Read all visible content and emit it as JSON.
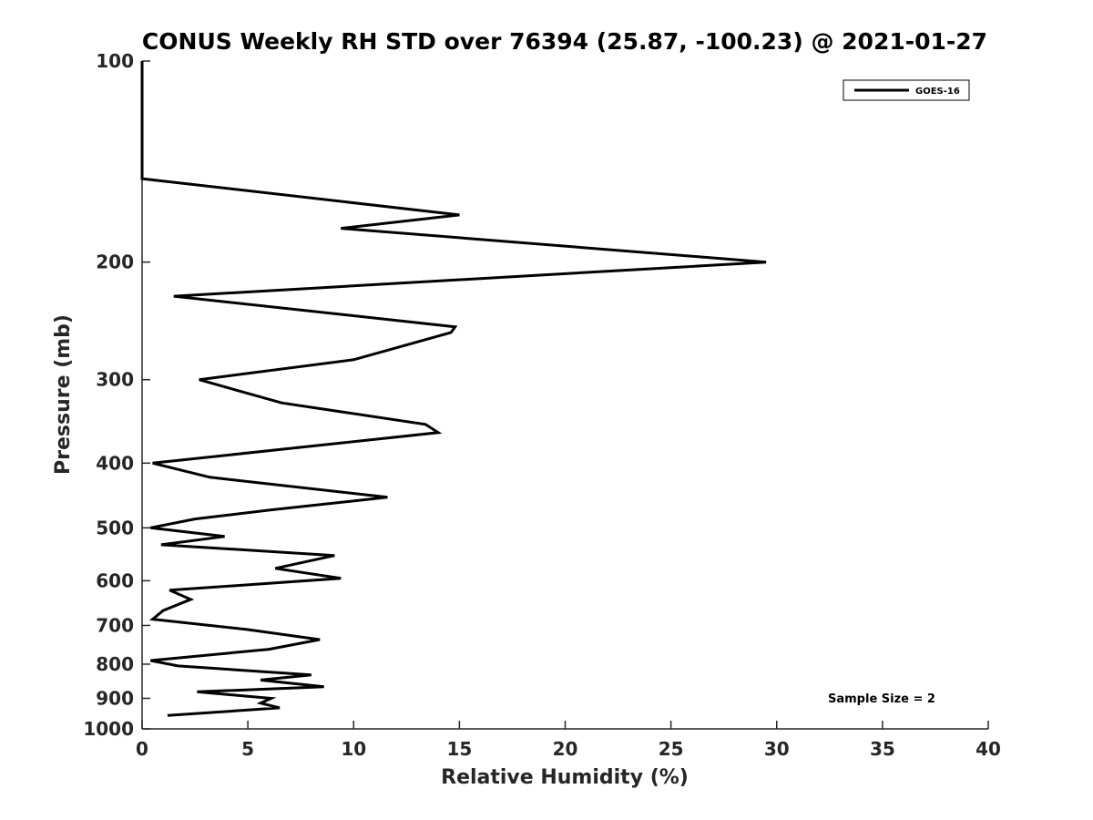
{
  "chart_data": {
    "type": "line",
    "title": "CONUS Weekly RH STD over 76394 (25.87, -100.23) @ 2021-01-27",
    "xlabel": "Relative Humidity (%)",
    "ylabel": "Pressure (mb)",
    "xlim": [
      0,
      40
    ],
    "ylim": [
      100,
      1000
    ],
    "yscale": "log",
    "yreversed": true,
    "grid": false,
    "legend_position": "top-right",
    "xticks": [
      "0",
      "5",
      "10",
      "15",
      "20",
      "25",
      "30",
      "35",
      "40"
    ],
    "yticks": [
      "100",
      "200",
      "300",
      "400",
      "500",
      "600",
      "700",
      "800",
      "900",
      "1000"
    ],
    "series": [
      {
        "name": "GOES-16",
        "color": "#000000",
        "x": [
          0.0,
          0.0,
          15.0,
          9.4,
          29.5,
          1.5,
          14.8,
          14.6,
          10.0,
          2.7,
          6.6,
          13.4,
          14.0,
          0.5,
          3.2,
          11.6,
          6.1,
          2.5,
          0.4,
          3.9,
          0.9,
          9.1,
          6.3,
          9.4,
          1.3,
          2.3,
          1.0,
          0.5,
          5.0,
          8.4,
          6.0,
          0.4,
          1.7,
          8.0,
          5.6,
          8.6,
          2.6,
          6.1,
          5.6,
          6.5,
          1.2
        ],
        "y": [
          100,
          150,
          170,
          178,
          200,
          225,
          250,
          255,
          280,
          300,
          325,
          350,
          360,
          400,
          420,
          450,
          470,
          485,
          500,
          515,
          530,
          550,
          575,
          595,
          620,
          640,
          665,
          685,
          710,
          735,
          760,
          790,
          805,
          830,
          845,
          865,
          880,
          900,
          915,
          930,
          955
        ]
      }
    ],
    "annotation": "Sample Size = 2"
  }
}
